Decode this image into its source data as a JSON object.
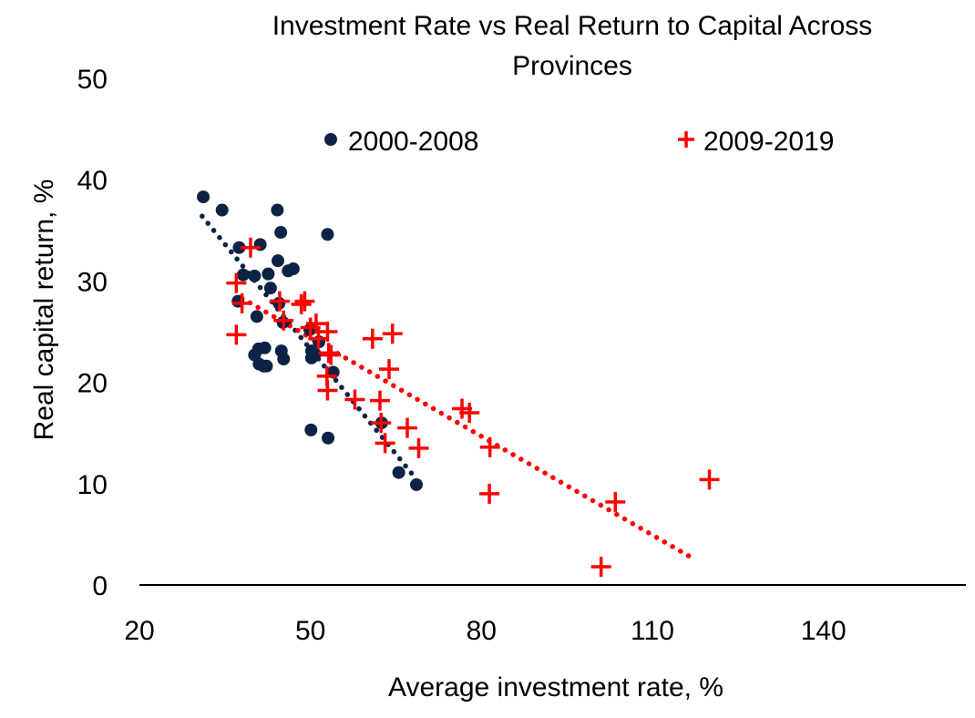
{
  "chart_data": {
    "type": "scatter",
    "title_lines": [
      "Investment Rate vs Real Return to Capital Across",
      "Provinces"
    ],
    "xlabel": "Average investment rate, %",
    "ylabel": "Real capital return, %",
    "xlim": [
      20,
      165
    ],
    "ylim": [
      0,
      50
    ],
    "xticks": [
      20,
      50,
      80,
      110,
      140
    ],
    "yticks": [
      0,
      10,
      20,
      30,
      40,
      50
    ],
    "grid": false,
    "legend_position": "top",
    "series": [
      {
        "name": "2000-2008",
        "marker": "circle",
        "color": "#0d2345",
        "points": [
          [
            31.2,
            38.3
          ],
          [
            34.5,
            37.0
          ],
          [
            44.2,
            37.0
          ],
          [
            44.8,
            34.8
          ],
          [
            53.0,
            34.6
          ],
          [
            37.5,
            33.3
          ],
          [
            41.2,
            33.6
          ],
          [
            42.6,
            30.7
          ],
          [
            44.3,
            32.0
          ],
          [
            46.1,
            31.0
          ],
          [
            47.0,
            31.2
          ],
          [
            38.2,
            30.6
          ],
          [
            40.2,
            30.5
          ],
          [
            43.0,
            29.3
          ],
          [
            37.3,
            28.0
          ],
          [
            44.5,
            27.8
          ],
          [
            45.2,
            25.9
          ],
          [
            40.6,
            26.5
          ],
          [
            40.2,
            22.7
          ],
          [
            40.9,
            23.3
          ],
          [
            42.0,
            23.4
          ],
          [
            41.0,
            21.8
          ],
          [
            41.8,
            21.6
          ],
          [
            42.3,
            21.6
          ],
          [
            44.9,
            23.1
          ],
          [
            45.3,
            22.3
          ],
          [
            49.9,
            25.2
          ],
          [
            50.2,
            23.1
          ],
          [
            50.2,
            22.4
          ],
          [
            50.8,
            22.8
          ],
          [
            51.5,
            24.0
          ],
          [
            50.1,
            15.3
          ],
          [
            53.1,
            14.5
          ],
          [
            62.5,
            16.0
          ],
          [
            65.5,
            11.1
          ],
          [
            68.6,
            9.9
          ],
          [
            54.0,
            21.0
          ]
        ]
      },
      {
        "name": "2009-2019",
        "marker": "cross",
        "color": "#ff0000",
        "points": [
          [
            39.5,
            33.3
          ],
          [
            37.0,
            29.8
          ],
          [
            37.0,
            24.7
          ],
          [
            45.3,
            26.1
          ],
          [
            48.4,
            27.7
          ],
          [
            49.0,
            28.0
          ],
          [
            50.0,
            25.4
          ],
          [
            51.0,
            25.8
          ],
          [
            51.4,
            24.3
          ],
          [
            53.0,
            25.0
          ],
          [
            53.6,
            22.7
          ],
          [
            53.2,
            22.9
          ],
          [
            52.9,
            20.6
          ],
          [
            53.0,
            19.2
          ],
          [
            57.8,
            18.3
          ],
          [
            60.9,
            24.3
          ],
          [
            64.4,
            24.8
          ],
          [
            63.8,
            21.3
          ],
          [
            62.2,
            18.2
          ],
          [
            62.4,
            16.0
          ],
          [
            63.1,
            14.0
          ],
          [
            67.0,
            15.5
          ],
          [
            69.0,
            13.5
          ],
          [
            76.6,
            17.4
          ],
          [
            77.9,
            17.0
          ],
          [
            81.5,
            13.6
          ],
          [
            81.4,
            9.0
          ],
          [
            101.0,
            1.8
          ],
          [
            103.5,
            8.2
          ],
          [
            120.0,
            10.4
          ],
          [
            44.6,
            28.0
          ],
          [
            38.0,
            27.8
          ]
        ]
      }
    ],
    "trendlines": [
      {
        "series": "2000-2008",
        "style": "dotted",
        "color": "#0d2345",
        "x0": 31.0,
        "y0": 36.4,
        "x1": 68.5,
        "y1": 10.5
      },
      {
        "series": "2009-2019",
        "style": "dotted",
        "color": "#ff0000",
        "x0": 38.0,
        "y0": 28.3,
        "x1": 117.5,
        "y1": 2.5
      }
    ]
  }
}
